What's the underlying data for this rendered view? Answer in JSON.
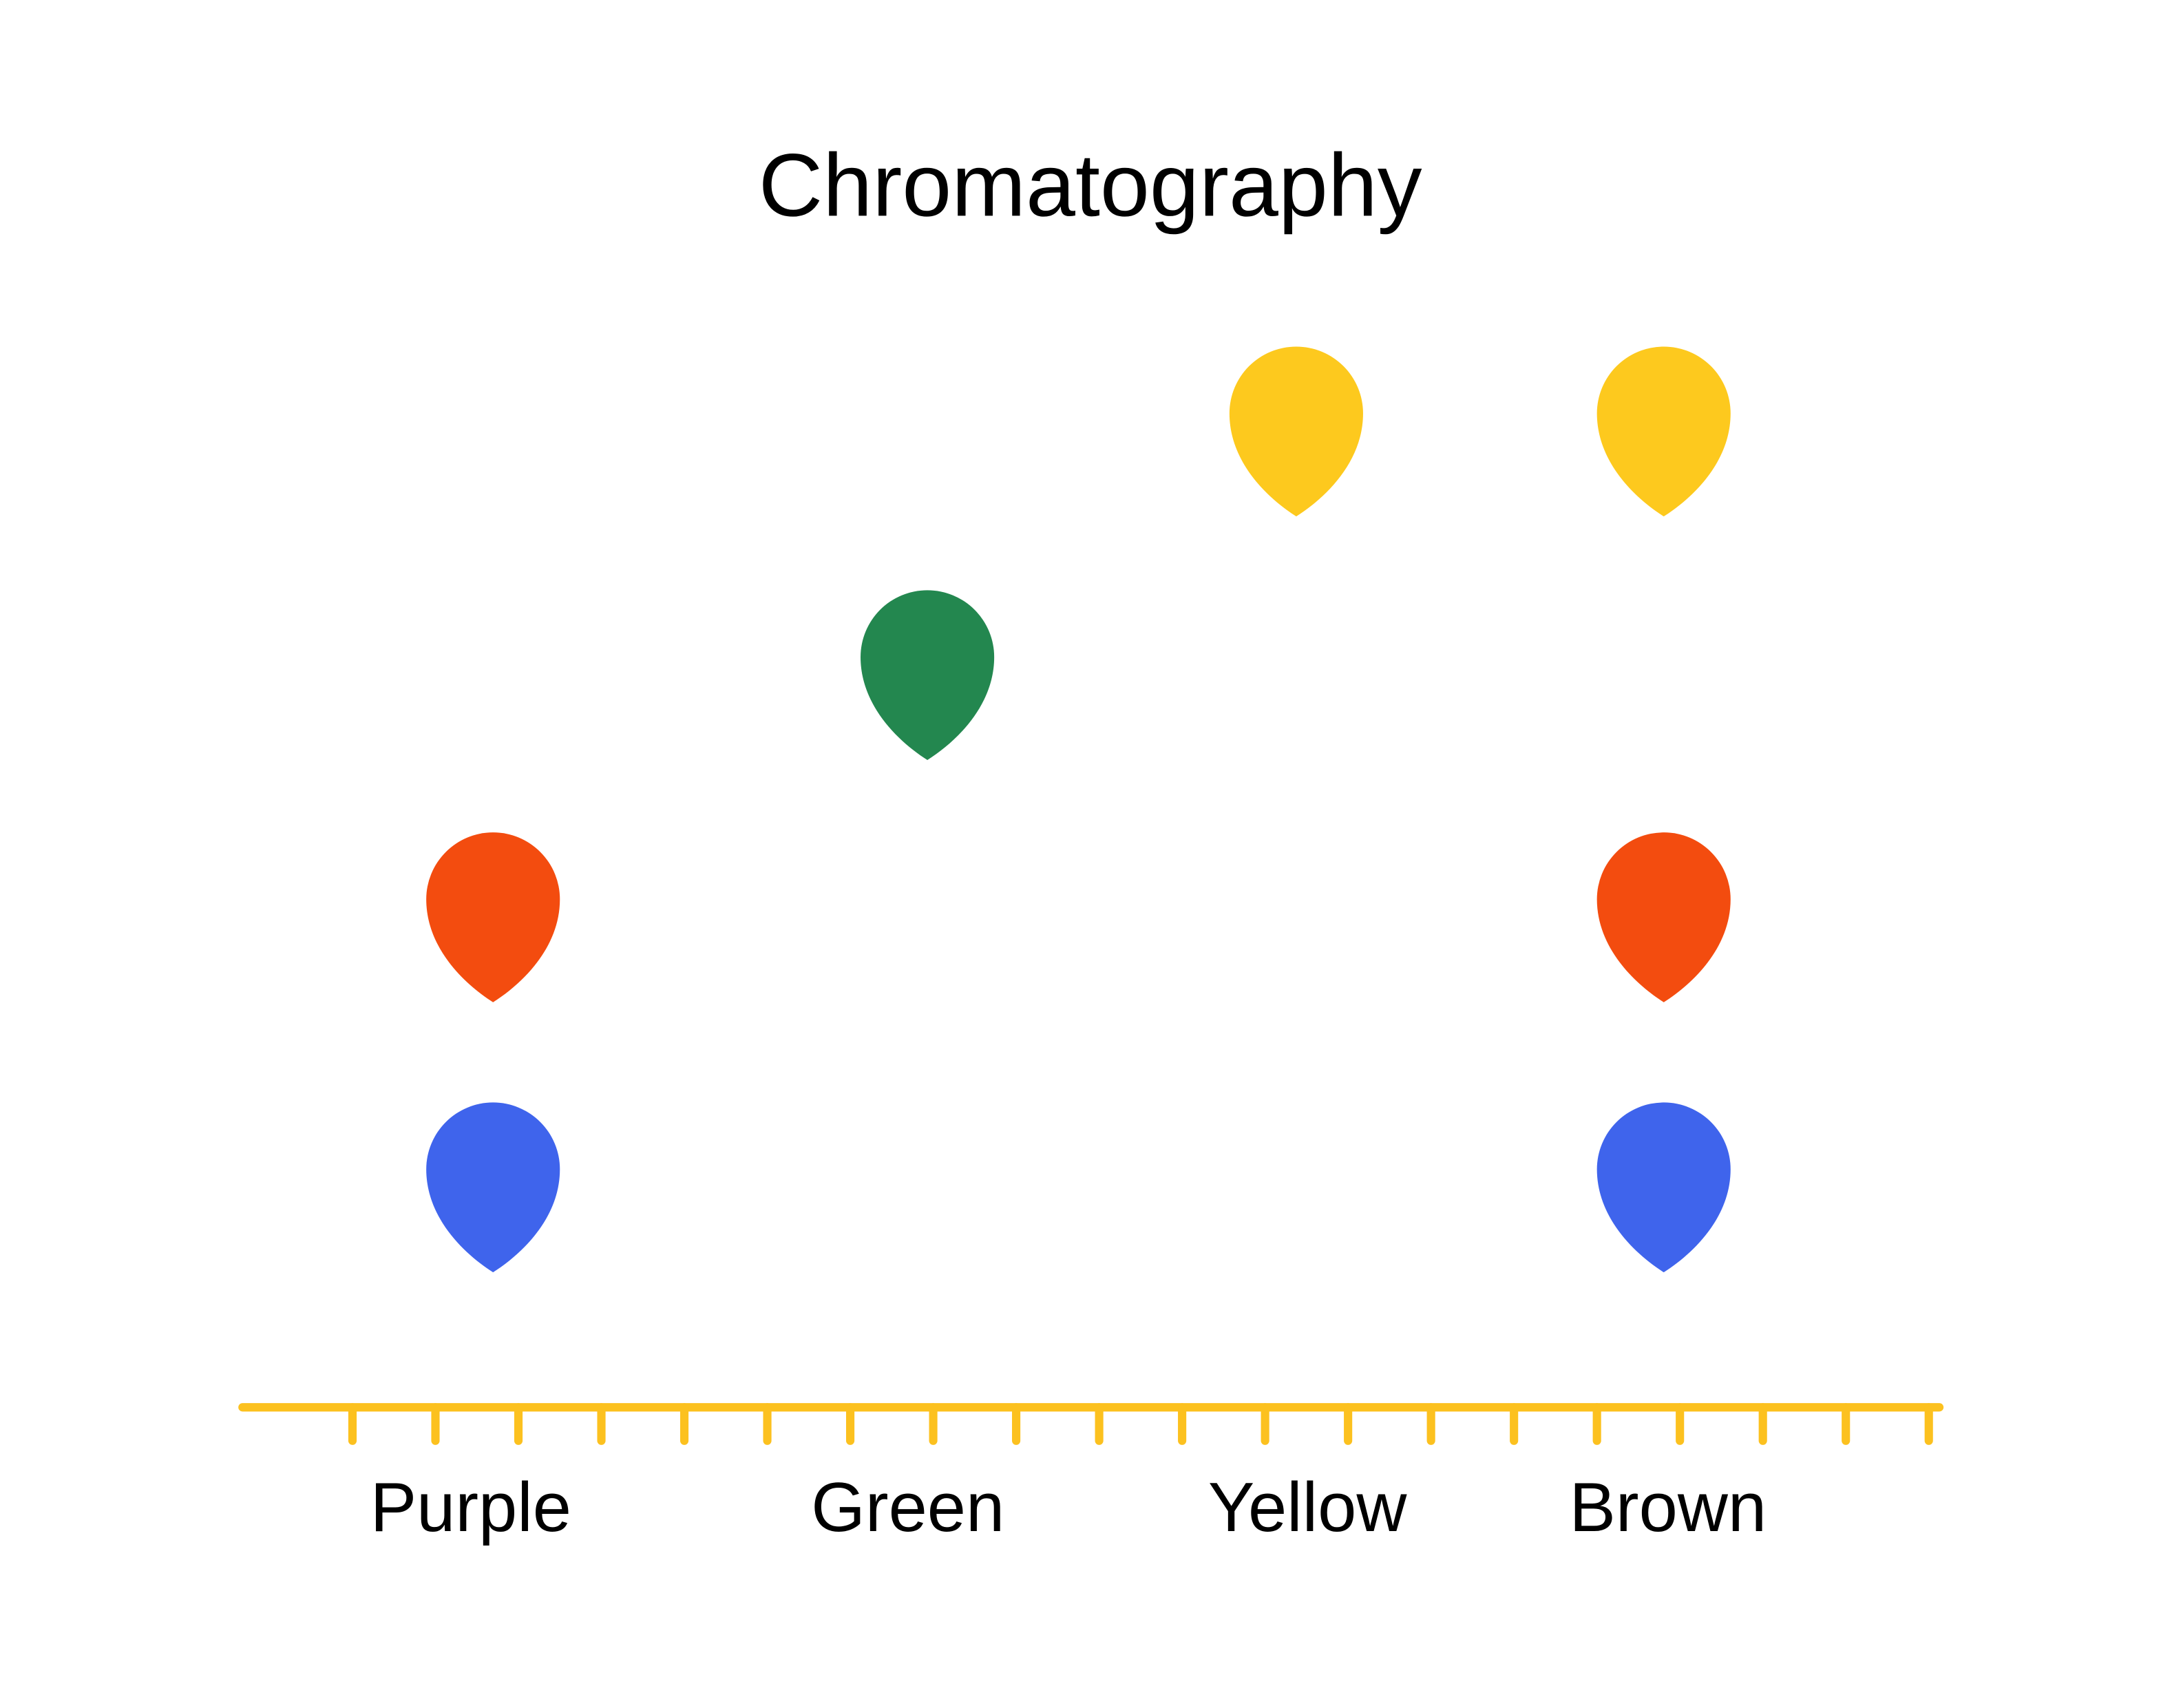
{
  "header": {
    "title": "Chromatography"
  },
  "samples": [
    {
      "label": "Purple"
    },
    {
      "label": "Green"
    },
    {
      "label": "Yellow"
    },
    {
      "label": "Brown"
    }
  ]
}
